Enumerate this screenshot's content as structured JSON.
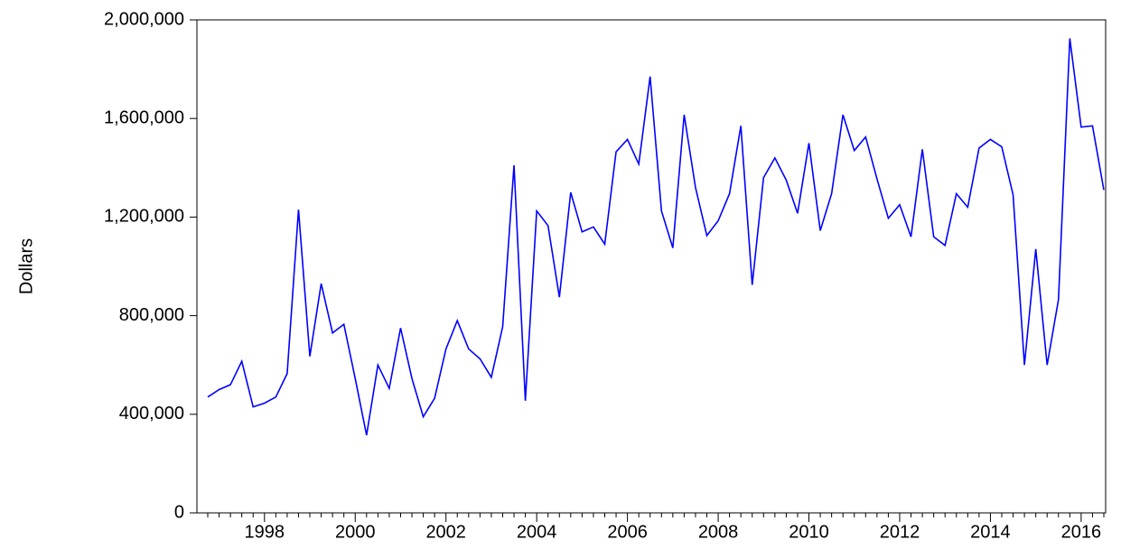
{
  "chart_data": {
    "type": "line",
    "ylabel": "Dollars",
    "color": "#0000ff",
    "categories": [
      null,
      null,
      null,
      null,
      null,
      "1998",
      null,
      null,
      null,
      null,
      null,
      null,
      null,
      "2000",
      null,
      null,
      null,
      null,
      null,
      null,
      null,
      "2002",
      null,
      null,
      null,
      null,
      null,
      null,
      null,
      "2004",
      null,
      null,
      null,
      null,
      null,
      null,
      null,
      "2006",
      null,
      null,
      null,
      null,
      null,
      null,
      null,
      "2008",
      null,
      null,
      null,
      null,
      null,
      null,
      null,
      "2010",
      null,
      null,
      null,
      null,
      null,
      null,
      null,
      "2012",
      null,
      null,
      null,
      null,
      null,
      null,
      null,
      "2014",
      null,
      null,
      null,
      null,
      null,
      null,
      null,
      "2016",
      null,
      null
    ],
    "values": [
      470000,
      500000,
      520000,
      615000,
      430000,
      445000,
      470000,
      565000,
      1230000,
      635000,
      930000,
      730000,
      765000,
      545000,
      315000,
      600000,
      505000,
      750000,
      545000,
      390000,
      465000,
      665000,
      780000,
      665000,
      625000,
      550000,
      755000,
      1410000,
      455000,
      1225000,
      1165000,
      875000,
      1300000,
      1140000,
      1160000,
      1090000,
      1465000,
      1515000,
      1415000,
      1770000,
      1225000,
      1075000,
      1615000,
      1320000,
      1125000,
      1185000,
      1295000,
      1570000,
      925000,
      1360000,
      1440000,
      1350000,
      1215000,
      1500000,
      1145000,
      1295000,
      1615000,
      1470000,
      1525000,
      1355000,
      1195000,
      1250000,
      1120000,
      1475000,
      1120000,
      1085000,
      1295000,
      1240000,
      1480000,
      1515000,
      1485000,
      1290000,
      600000,
      1070000,
      600000,
      865000,
      1925000,
      1565000,
      1570000,
      1310000
    ],
    "ylim": [
      0,
      2000000
    ],
    "yticks": [
      {
        "value": 0,
        "label": "0"
      },
      {
        "value": 400000,
        "label": "400,000"
      },
      {
        "value": 800000,
        "label": "800,000"
      },
      {
        "value": 1200000,
        "label": "1,200,000"
      },
      {
        "value": 1600000,
        "label": "1,600,000"
      },
      {
        "value": 2000000,
        "label": "2,000,000"
      }
    ]
  }
}
